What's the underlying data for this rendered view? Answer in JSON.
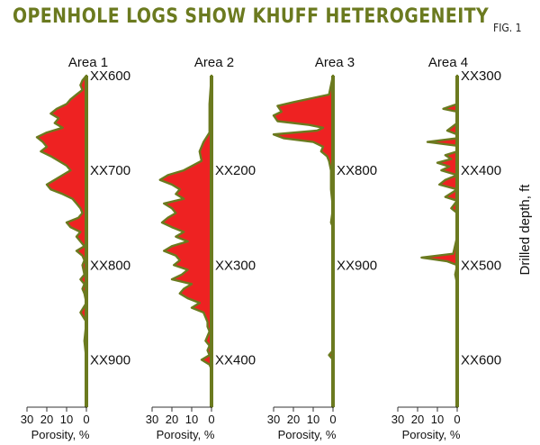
{
  "title": "OPENHOLE LOGS SHOW KHUFF HETEROGENEITY",
  "figure_label": "FIG. 1",
  "right_axis_label": "Drilled depth, ft",
  "colors": {
    "fill": "#ee2222",
    "outline": "#6b7a1f",
    "axis": "#6b7a1f",
    "title": "#6b7a1f"
  },
  "chart_data": [
    {
      "type": "area",
      "title": "Area 1",
      "xlabel": "Porosity, %",
      "x_ticks": [
        "30",
        "20",
        "10",
        "0"
      ],
      "xlim": [
        30,
        0
      ],
      "depth_labels": [
        "XX600",
        "XX700",
        "XX800",
        "XX900"
      ],
      "depth_ticks": [
        600,
        700,
        800,
        900
      ],
      "ylim": [
        600,
        950
      ],
      "profile": [
        [
          600,
          0
        ],
        [
          605,
          2
        ],
        [
          610,
          3
        ],
        [
          615,
          2
        ],
        [
          620,
          5
        ],
        [
          625,
          8
        ],
        [
          630,
          10
        ],
        [
          635,
          15
        ],
        [
          640,
          18
        ],
        [
          645,
          14
        ],
        [
          650,
          16
        ],
        [
          655,
          12
        ],
        [
          660,
          20
        ],
        [
          665,
          25
        ],
        [
          670,
          22
        ],
        [
          675,
          20
        ],
        [
          680,
          23
        ],
        [
          685,
          18
        ],
        [
          690,
          14
        ],
        [
          695,
          10
        ],
        [
          700,
          8
        ],
        [
          705,
          12
        ],
        [
          710,
          16
        ],
        [
          715,
          20
        ],
        [
          720,
          18
        ],
        [
          725,
          12
        ],
        [
          730,
          7
        ],
        [
          735,
          5
        ],
        [
          740,
          3
        ],
        [
          745,
          2
        ],
        [
          750,
          4
        ],
        [
          755,
          10
        ],
        [
          760,
          8
        ],
        [
          765,
          3
        ],
        [
          770,
          5
        ],
        [
          775,
          3
        ],
        [
          780,
          1
        ],
        [
          785,
          5
        ],
        [
          790,
          2
        ],
        [
          795,
          1
        ],
        [
          800,
          2
        ],
        [
          810,
          1
        ],
        [
          815,
          3
        ],
        [
          820,
          1
        ],
        [
          825,
          2
        ],
        [
          830,
          1
        ],
        [
          840,
          0
        ],
        [
          850,
          3
        ],
        [
          860,
          0
        ],
        [
          880,
          1
        ],
        [
          900,
          0
        ],
        [
          950,
          0
        ]
      ]
    },
    {
      "type": "area",
      "title": "Area 2",
      "xlabel": "Porosity, %",
      "x_ticks": [
        "30",
        "20",
        "10",
        "0"
      ],
      "xlim": [
        30,
        0
      ],
      "depth_labels": [
        "XX200",
        "XX300",
        "XX400"
      ],
      "depth_ticks": [
        200,
        300,
        400
      ],
      "ylim": [
        100,
        450
      ],
      "profile": [
        [
          100,
          0
        ],
        [
          130,
          1
        ],
        [
          160,
          1
        ],
        [
          170,
          4
        ],
        [
          180,
          6
        ],
        [
          190,
          5
        ],
        [
          200,
          14
        ],
        [
          205,
          22
        ],
        [
          210,
          26
        ],
        [
          215,
          20
        ],
        [
          220,
          16
        ],
        [
          225,
          18
        ],
        [
          230,
          14
        ],
        [
          235,
          24
        ],
        [
          240,
          20
        ],
        [
          245,
          18
        ],
        [
          250,
          22
        ],
        [
          255,
          25
        ],
        [
          260,
          20
        ],
        [
          265,
          14
        ],
        [
          270,
          18
        ],
        [
          275,
          12
        ],
        [
          280,
          20
        ],
        [
          285,
          24
        ],
        [
          290,
          18
        ],
        [
          295,
          16
        ],
        [
          300,
          19
        ],
        [
          305,
          12
        ],
        [
          310,
          15
        ],
        [
          315,
          20
        ],
        [
          320,
          10
        ],
        [
          325,
          14
        ],
        [
          330,
          16
        ],
        [
          335,
          12
        ],
        [
          340,
          6
        ],
        [
          345,
          10
        ],
        [
          350,
          4
        ],
        [
          355,
          3
        ],
        [
          360,
          2
        ],
        [
          365,
          2
        ],
        [
          370,
          1
        ],
        [
          380,
          3
        ],
        [
          385,
          1
        ],
        [
          390,
          2
        ],
        [
          395,
          1
        ],
        [
          400,
          5
        ],
        [
          405,
          1
        ],
        [
          410,
          0
        ],
        [
          450,
          0
        ]
      ]
    },
    {
      "type": "area",
      "title": "Area 3",
      "xlabel": "Porosity, %",
      "x_ticks": [
        "30",
        "20",
        "10",
        "0"
      ],
      "xlim": [
        30,
        0
      ],
      "depth_labels": [
        "XX800",
        "XX900"
      ],
      "depth_ticks": [
        800,
        900
      ],
      "ylim": [
        700,
        1050
      ],
      "profile": [
        [
          700,
          0
        ],
        [
          710,
          1
        ],
        [
          720,
          2
        ],
        [
          728,
          20
        ],
        [
          732,
          28
        ],
        [
          738,
          26
        ],
        [
          742,
          30
        ],
        [
          748,
          28
        ],
        [
          752,
          12
        ],
        [
          755,
          5
        ],
        [
          758,
          8
        ],
        [
          762,
          30
        ],
        [
          766,
          25
        ],
        [
          770,
          10
        ],
        [
          775,
          5
        ],
        [
          780,
          6
        ],
        [
          785,
          3
        ],
        [
          790,
          2
        ],
        [
          800,
          1
        ],
        [
          820,
          1
        ],
        [
          840,
          0
        ],
        [
          855,
          1
        ],
        [
          860,
          0
        ],
        [
          900,
          0
        ],
        [
          990,
          0
        ],
        [
          995,
          2
        ],
        [
          1000,
          0
        ],
        [
          1050,
          0
        ]
      ]
    },
    {
      "type": "area",
      "title": "Area 4",
      "xlabel": "Porosity, %",
      "x_ticks": [
        "30",
        "20",
        "10",
        "0"
      ],
      "xlim": [
        30,
        0
      ],
      "depth_labels": [
        "XX300",
        "XX400",
        "XX500",
        "XX600"
      ],
      "depth_ticks": [
        300,
        400,
        500,
        600
      ],
      "ylim": [
        300,
        650
      ],
      "profile": [
        [
          300,
          0
        ],
        [
          330,
          0
        ],
        [
          335,
          7
        ],
        [
          338,
          0
        ],
        [
          350,
          0
        ],
        [
          358,
          5
        ],
        [
          362,
          0
        ],
        [
          366,
          0
        ],
        [
          370,
          15
        ],
        [
          374,
          0
        ],
        [
          380,
          0
        ],
        [
          384,
          6
        ],
        [
          388,
          3
        ],
        [
          392,
          10
        ],
        [
          396,
          4
        ],
        [
          400,
          8
        ],
        [
          405,
          0
        ],
        [
          410,
          6
        ],
        [
          415,
          9
        ],
        [
          420,
          0
        ],
        [
          428,
          6
        ],
        [
          432,
          0
        ],
        [
          440,
          3
        ],
        [
          445,
          0
        ],
        [
          460,
          0
        ],
        [
          470,
          0
        ],
        [
          488,
          2
        ],
        [
          492,
          18
        ],
        [
          496,
          5
        ],
        [
          500,
          0
        ],
        [
          510,
          1
        ],
        [
          520,
          0
        ],
        [
          650,
          0
        ]
      ]
    }
  ]
}
